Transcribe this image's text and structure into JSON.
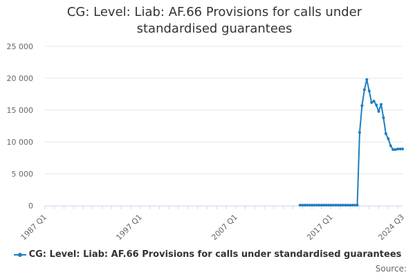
{
  "chart_data": {
    "type": "line",
    "title": "CG: Level: Liab: AF.66 Provisions for calls under standardised guarantees",
    "xlabel": "",
    "ylabel": "",
    "ylim": [
      0,
      25000
    ],
    "y_ticks": [
      {
        "value": 0,
        "label": "0"
      },
      {
        "value": 5000,
        "label": "5 000"
      },
      {
        "value": 10000,
        "label": "10 000"
      },
      {
        "value": 15000,
        "label": "15 000"
      },
      {
        "value": 20000,
        "label": "20 000"
      },
      {
        "value": 25000,
        "label": "25 000"
      }
    ],
    "x_range": [
      "1987 Q1",
      "2024 Q3"
    ],
    "x_tick_labels": [
      "1987 Q1",
      "1997 Q1",
      "2007 Q1",
      "2017 Q1",
      "2024 Q3"
    ],
    "grid": "horizontal",
    "legend_position": "bottom",
    "color": "#1d7fc0",
    "series": [
      {
        "name": "CG: Level: Liab: AF.66 Provisions for calls under standardised guarantees",
        "points": [
          [
            "2013 Q4",
            80
          ],
          [
            "2014 Q1",
            80
          ],
          [
            "2014 Q2",
            80
          ],
          [
            "2014 Q3",
            80
          ],
          [
            "2014 Q4",
            80
          ],
          [
            "2015 Q1",
            80
          ],
          [
            "2015 Q2",
            80
          ],
          [
            "2015 Q3",
            80
          ],
          [
            "2015 Q4",
            80
          ],
          [
            "2016 Q1",
            80
          ],
          [
            "2016 Q2",
            80
          ],
          [
            "2016 Q3",
            80
          ],
          [
            "2016 Q4",
            80
          ],
          [
            "2017 Q1",
            80
          ],
          [
            "2017 Q2",
            80
          ],
          [
            "2017 Q3",
            80
          ],
          [
            "2017 Q4",
            80
          ],
          [
            "2018 Q1",
            80
          ],
          [
            "2018 Q2",
            80
          ],
          [
            "2018 Q3",
            80
          ],
          [
            "2018 Q4",
            80
          ],
          [
            "2019 Q1",
            80
          ],
          [
            "2019 Q2",
            80
          ],
          [
            "2019 Q3",
            80
          ],
          [
            "2019 Q4",
            80
          ],
          [
            "2020 Q1",
            11500
          ],
          [
            "2020 Q2",
            15700
          ],
          [
            "2020 Q3",
            18200
          ],
          [
            "2020 Q4",
            19800
          ],
          [
            "2021 Q1",
            18000
          ],
          [
            "2021 Q2",
            16200
          ],
          [
            "2021 Q3",
            16400
          ],
          [
            "2021 Q4",
            15800
          ],
          [
            "2022 Q1",
            14800
          ],
          [
            "2022 Q2",
            15900
          ],
          [
            "2022 Q3",
            13800
          ],
          [
            "2022 Q4",
            11300
          ],
          [
            "2023 Q1",
            10500
          ],
          [
            "2023 Q2",
            9400
          ],
          [
            "2023 Q3",
            8800
          ],
          [
            "2023 Q4",
            8800
          ],
          [
            "2024 Q1",
            8900
          ],
          [
            "2024 Q2",
            8900
          ],
          [
            "2024 Q3",
            8900
          ]
        ]
      }
    ]
  },
  "legend": {
    "label": "CG: Level: Liab: AF.66 Provisions for calls under standardised guarantees"
  },
  "source": {
    "label": "Source:"
  }
}
